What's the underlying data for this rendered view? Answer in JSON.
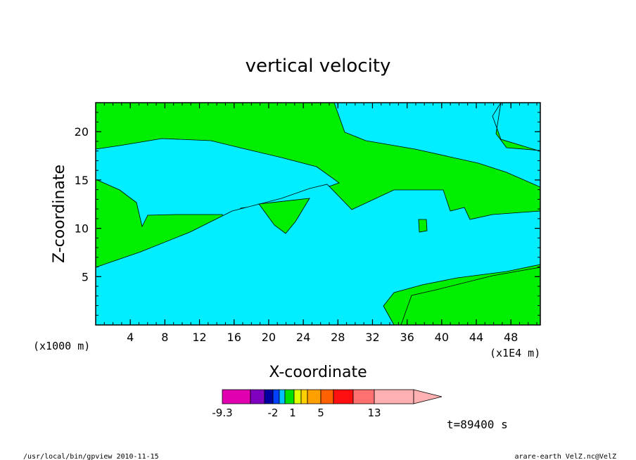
{
  "chart_data": {
    "type": "heatmap",
    "title": "vertical velocity",
    "xlabel": "X-coordinate",
    "ylabel": "Z-coordinate",
    "x_units_left": "(x1000 m)",
    "x_units_right": "(x1E4 m)",
    "xlim": [
      0,
      51.4
    ],
    "ylim": [
      0,
      23
    ],
    "x_ticks": [
      "4",
      "8",
      "12",
      "16",
      "20",
      "24",
      "28",
      "32",
      "36",
      "40",
      "44",
      "48"
    ],
    "y_ticks": [
      "5",
      "10",
      "15",
      "20"
    ],
    "regions": [
      {
        "name": "background",
        "color": "#00ee00"
      },
      {
        "name": "upper-band",
        "color": "#00eeff"
      },
      {
        "name": "right-top",
        "color": "#00eeff"
      },
      {
        "name": "lower-tongue",
        "color": "#00eeff"
      }
    ],
    "colorbar": {
      "colors": [
        "#e000b0",
        "#8000c0",
        "#0000a0",
        "#0040ff",
        "#00c0ff",
        "#00e000",
        "#e0ff00",
        "#ffd000",
        "#ffa000",
        "#ff6000",
        "#ff1010",
        "#ff7070",
        "#ffb0b0"
      ],
      "tick_labels": [
        "-9.3",
        "-2",
        "1",
        "5",
        "13"
      ]
    },
    "time_label": "t=89400 s"
  },
  "footer": {
    "left": "/usr/local/bin/gpview  2010-11-15",
    "right": "arare-earth_VelZ.nc@VelZ"
  }
}
